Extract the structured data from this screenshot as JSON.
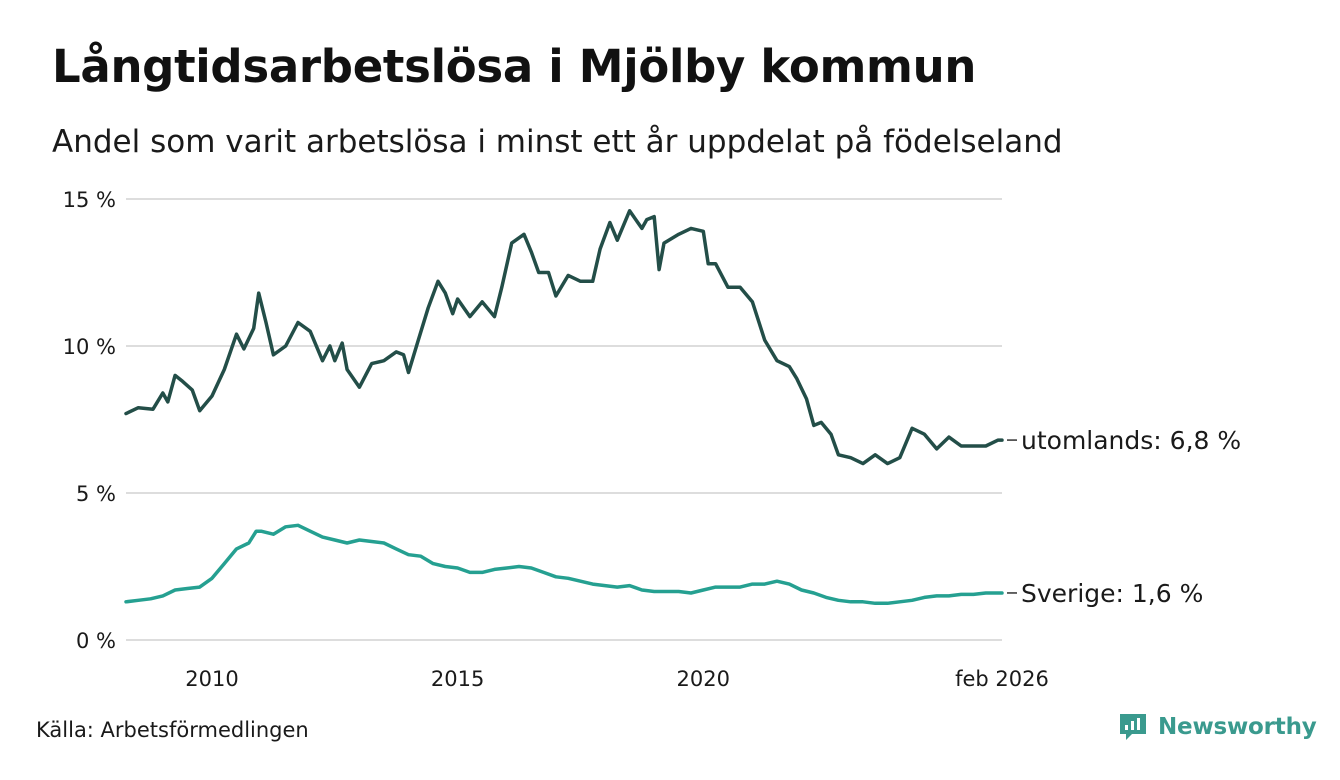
{
  "header": {
    "title": "Långtidsarbetslösa i Mjölby kommun",
    "subtitle": "Andel som varit arbetslösa i minst ett år uppdelat på födelseland"
  },
  "footer": {
    "source": "Källa: Arbetsförmedlingen",
    "brand": "Newsworthy"
  },
  "colors": {
    "utomlands": "#234e48",
    "sverige": "#25a091",
    "grid": "#dddddd",
    "brand": "#3a9a8e"
  },
  "chart_data": {
    "type": "line",
    "title": "Långtidsarbetslösa i Mjölby kommun",
    "subtitle": "Andel som varit arbetslösa i minst ett år uppdelat på födelseland",
    "xlabel": "",
    "ylabel": "",
    "xlim": [
      2008.25,
      2026.08
    ],
    "ylim": [
      0,
      15
    ],
    "yticks": [
      0,
      5,
      10,
      15
    ],
    "ytick_labels": [
      "0 %",
      "5 %",
      "10 %",
      "15 %"
    ],
    "xticks": [
      2010,
      2015,
      2020,
      2026.08
    ],
    "xtick_labels": [
      "2010",
      "2015",
      "2020",
      "feb 2026"
    ],
    "grid": true,
    "series": [
      {
        "name": "utomlands",
        "label": "utomlands: 6,8 %",
        "color": "#234e48",
        "points": [
          [
            2008.25,
            7.7
          ],
          [
            2008.5,
            7.9
          ],
          [
            2008.8,
            7.85
          ],
          [
            2009.0,
            8.4
          ],
          [
            2009.1,
            8.1
          ],
          [
            2009.25,
            9.0
          ],
          [
            2009.4,
            8.8
          ],
          [
            2009.6,
            8.5
          ],
          [
            2009.75,
            7.8
          ],
          [
            2010.0,
            8.3
          ],
          [
            2010.25,
            9.2
          ],
          [
            2010.5,
            10.4
          ],
          [
            2010.65,
            9.9
          ],
          [
            2010.85,
            10.6
          ],
          [
            2010.95,
            11.8
          ],
          [
            2011.1,
            10.8
          ],
          [
            2011.25,
            9.7
          ],
          [
            2011.5,
            10.0
          ],
          [
            2011.75,
            10.8
          ],
          [
            2012.0,
            10.5
          ],
          [
            2012.25,
            9.5
          ],
          [
            2012.4,
            10.0
          ],
          [
            2012.5,
            9.5
          ],
          [
            2012.65,
            10.1
          ],
          [
            2012.75,
            9.2
          ],
          [
            2013.0,
            8.6
          ],
          [
            2013.25,
            9.4
          ],
          [
            2013.5,
            9.5
          ],
          [
            2013.75,
            9.8
          ],
          [
            2013.9,
            9.7
          ],
          [
            2014.0,
            9.1
          ],
          [
            2014.2,
            10.2
          ],
          [
            2014.4,
            11.3
          ],
          [
            2014.6,
            12.2
          ],
          [
            2014.75,
            11.8
          ],
          [
            2014.9,
            11.1
          ],
          [
            2015.0,
            11.6
          ],
          [
            2015.25,
            11.0
          ],
          [
            2015.5,
            11.5
          ],
          [
            2015.75,
            11.0
          ],
          [
            2015.9,
            12.0
          ],
          [
            2016.1,
            13.5
          ],
          [
            2016.35,
            13.8
          ],
          [
            2016.5,
            13.2
          ],
          [
            2016.65,
            12.5
          ],
          [
            2016.85,
            12.5
          ],
          [
            2017.0,
            11.7
          ],
          [
            2017.25,
            12.4
          ],
          [
            2017.5,
            12.2
          ],
          [
            2017.75,
            12.2
          ],
          [
            2017.9,
            13.3
          ],
          [
            2018.1,
            14.2
          ],
          [
            2018.25,
            13.6
          ],
          [
            2018.5,
            14.6
          ],
          [
            2018.75,
            14.0
          ],
          [
            2018.85,
            14.3
          ],
          [
            2019.0,
            14.4
          ],
          [
            2019.1,
            12.6
          ],
          [
            2019.2,
            13.5
          ],
          [
            2019.5,
            13.8
          ],
          [
            2019.75,
            14.0
          ],
          [
            2020.0,
            13.9
          ],
          [
            2020.1,
            12.8
          ],
          [
            2020.25,
            12.8
          ],
          [
            2020.5,
            12.0
          ],
          [
            2020.75,
            12.0
          ],
          [
            2021.0,
            11.5
          ],
          [
            2021.25,
            10.2
          ],
          [
            2021.5,
            9.5
          ],
          [
            2021.75,
            9.3
          ],
          [
            2021.9,
            8.9
          ],
          [
            2022.1,
            8.2
          ],
          [
            2022.25,
            7.3
          ],
          [
            2022.4,
            7.4
          ],
          [
            2022.6,
            7.0
          ],
          [
            2022.75,
            6.3
          ],
          [
            2023.0,
            6.2
          ],
          [
            2023.25,
            6.0
          ],
          [
            2023.5,
            6.3
          ],
          [
            2023.75,
            6.0
          ],
          [
            2024.0,
            6.2
          ],
          [
            2024.25,
            7.2
          ],
          [
            2024.5,
            7.0
          ],
          [
            2024.75,
            6.5
          ],
          [
            2025.0,
            6.9
          ],
          [
            2025.25,
            6.6
          ],
          [
            2025.5,
            6.6
          ],
          [
            2025.75,
            6.6
          ],
          [
            2026.0,
            6.8
          ],
          [
            2026.08,
            6.8
          ]
        ]
      },
      {
        "name": "Sverige",
        "label": "Sverige: 1,6 %",
        "color": "#25a091",
        "points": [
          [
            2008.25,
            1.3
          ],
          [
            2008.5,
            1.35
          ],
          [
            2008.75,
            1.4
          ],
          [
            2009.0,
            1.5
          ],
          [
            2009.25,
            1.7
          ],
          [
            2009.5,
            1.75
          ],
          [
            2009.75,
            1.8
          ],
          [
            2010.0,
            2.1
          ],
          [
            2010.25,
            2.6
          ],
          [
            2010.5,
            3.1
          ],
          [
            2010.75,
            3.3
          ],
          [
            2010.9,
            3.7
          ],
          [
            2011.0,
            3.7
          ],
          [
            2011.25,
            3.6
          ],
          [
            2011.5,
            3.85
          ],
          [
            2011.75,
            3.9
          ],
          [
            2012.0,
            3.7
          ],
          [
            2012.25,
            3.5
          ],
          [
            2012.5,
            3.4
          ],
          [
            2012.75,
            3.3
          ],
          [
            2013.0,
            3.4
          ],
          [
            2013.25,
            3.35
          ],
          [
            2013.5,
            3.3
          ],
          [
            2013.75,
            3.1
          ],
          [
            2014.0,
            2.9
          ],
          [
            2014.25,
            2.85
          ],
          [
            2014.5,
            2.6
          ],
          [
            2014.75,
            2.5
          ],
          [
            2015.0,
            2.45
          ],
          [
            2015.25,
            2.3
          ],
          [
            2015.5,
            2.3
          ],
          [
            2015.75,
            2.4
          ],
          [
            2016.0,
            2.45
          ],
          [
            2016.25,
            2.5
          ],
          [
            2016.5,
            2.45
          ],
          [
            2016.75,
            2.3
          ],
          [
            2017.0,
            2.15
          ],
          [
            2017.25,
            2.1
          ],
          [
            2017.5,
            2.0
          ],
          [
            2017.75,
            1.9
          ],
          [
            2018.0,
            1.85
          ],
          [
            2018.25,
            1.8
          ],
          [
            2018.5,
            1.85
          ],
          [
            2018.75,
            1.7
          ],
          [
            2019.0,
            1.65
          ],
          [
            2019.25,
            1.65
          ],
          [
            2019.5,
            1.65
          ],
          [
            2019.75,
            1.6
          ],
          [
            2020.0,
            1.7
          ],
          [
            2020.25,
            1.8
          ],
          [
            2020.5,
            1.8
          ],
          [
            2020.75,
            1.8
          ],
          [
            2021.0,
            1.9
          ],
          [
            2021.25,
            1.9
          ],
          [
            2021.5,
            2.0
          ],
          [
            2021.75,
            1.9
          ],
          [
            2022.0,
            1.7
          ],
          [
            2022.25,
            1.6
          ],
          [
            2022.5,
            1.45
          ],
          [
            2022.75,
            1.35
          ],
          [
            2023.0,
            1.3
          ],
          [
            2023.25,
            1.3
          ],
          [
            2023.5,
            1.25
          ],
          [
            2023.75,
            1.25
          ],
          [
            2024.0,
            1.3
          ],
          [
            2024.25,
            1.35
          ],
          [
            2024.5,
            1.45
          ],
          [
            2024.75,
            1.5
          ],
          [
            2025.0,
            1.5
          ],
          [
            2025.25,
            1.55
          ],
          [
            2025.5,
            1.55
          ],
          [
            2025.75,
            1.6
          ],
          [
            2026.0,
            1.6
          ],
          [
            2026.08,
            1.6
          ]
        ]
      }
    ]
  }
}
